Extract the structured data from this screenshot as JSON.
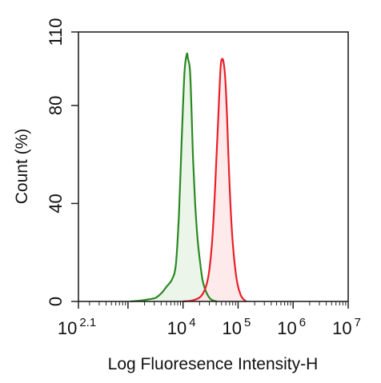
{
  "chart_data": {
    "type": "area",
    "xlabel": "Log Fluoresence Intensity-H",
    "ylabel": "Count  (%)",
    "x_scale": "log",
    "xlim": [
      125.9,
      10000000
    ],
    "ylim": [
      0,
      110
    ],
    "x_ticks": [
      {
        "value": 125.9,
        "base": "10",
        "exp": "2.1"
      },
      {
        "value": 10000,
        "base": "10",
        "exp": "4"
      },
      {
        "value": 100000,
        "base": "10",
        "exp": "5"
      },
      {
        "value": 1000000,
        "base": "10",
        "exp": "6"
      },
      {
        "value": 10000000,
        "base": "10",
        "exp": "7"
      }
    ],
    "y_ticks": [
      {
        "value": 0,
        "label": "0"
      },
      {
        "value": 40,
        "label": "40"
      },
      {
        "value": 80,
        "label": "80"
      },
      {
        "value": 110,
        "label": "110"
      }
    ],
    "grid": false,
    "series": [
      {
        "color": "#2a8a22",
        "fill": "#e4f2e1",
        "x": [
          1100,
          1600,
          2300,
          3200,
          4100,
          5000,
          6300,
          7400,
          8400,
          9500,
          10600,
          11700,
          12300,
          13300,
          14100,
          15100,
          16600,
          18300,
          20400,
          22500,
          25100,
          28200,
          31600,
          36300,
          41700
        ],
        "y": [
          0,
          0.3,
          0.8,
          1.5,
          3.5,
          6,
          9,
          15,
          35,
          67,
          93,
          101,
          99,
          95,
          82,
          60,
          40,
          26,
          16,
          9,
          5,
          2.5,
          1,
          0.3,
          0
        ]
      },
      {
        "color": "#e8202a",
        "fill": "#fde3e4",
        "x": [
          10000,
          15100,
          21900,
          28200,
          33100,
          37100,
          39800,
          43700,
          47900,
          51300,
          55000,
          58900,
          63100,
          69200,
          77600,
          87100,
          97700,
          112000,
          126000,
          141000
        ],
        "y": [
          0,
          0.5,
          2.5,
          9,
          22,
          40,
          55,
          75,
          95,
          99,
          97,
          90,
          75,
          50,
          28,
          15,
          7,
          2.5,
          0.8,
          0
        ]
      }
    ]
  }
}
